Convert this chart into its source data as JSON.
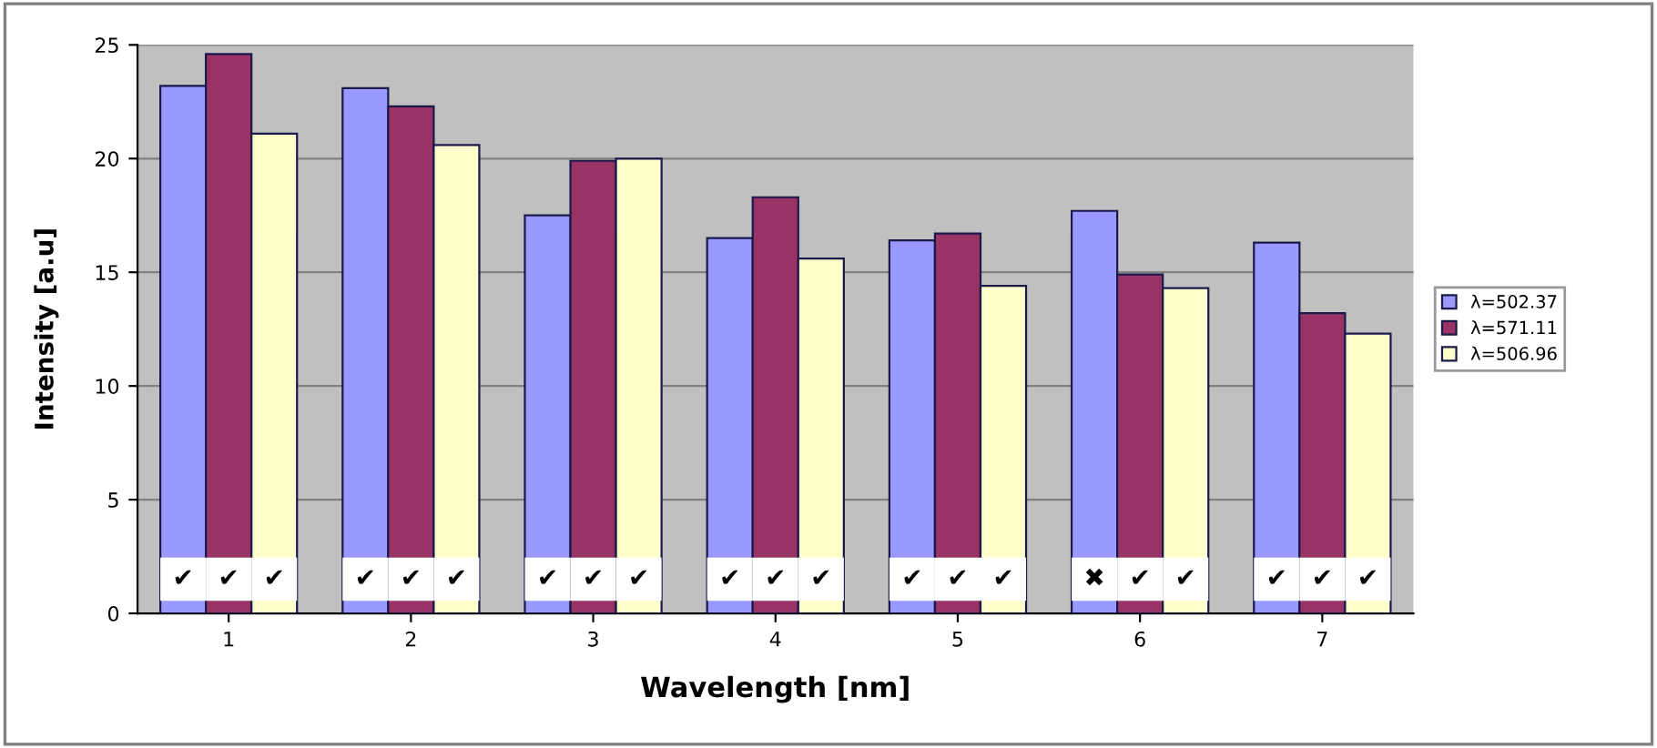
{
  "chart_data": {
    "type": "bar",
    "xlabel": "Wavelength [nm]",
    "ylabel": "Intensity [a.u]",
    "categories": [
      "1",
      "2",
      "3",
      "4",
      "5",
      "6",
      "7"
    ],
    "series": [
      {
        "name": "λ=502.37",
        "color": "#9999ff",
        "values": [
          23.2,
          23.1,
          17.5,
          16.5,
          16.4,
          17.7,
          16.3
        ]
      },
      {
        "name": "λ=571.11",
        "color": "#993366",
        "values": [
          24.6,
          22.3,
          19.9,
          18.3,
          16.7,
          14.9,
          13.2
        ]
      },
      {
        "name": "λ=506.96",
        "color": "#ffffcc",
        "values": [
          21.1,
          20.6,
          20.0,
          15.6,
          14.4,
          14.3,
          12.3
        ]
      }
    ],
    "ylim": [
      0,
      25
    ],
    "yticks": [
      0,
      5,
      10,
      15,
      20,
      25
    ],
    "grid": "y",
    "legend": "right",
    "annotations": [
      "✔",
      "✔",
      "✔",
      "✔",
      "✔",
      "✔",
      "✔",
      "✔",
      "✔",
      "✔",
      "✔",
      "✔",
      "✔",
      "✔",
      "✔",
      "✖",
      "✔",
      "✔",
      "✔",
      "✔",
      "✔"
    ]
  }
}
